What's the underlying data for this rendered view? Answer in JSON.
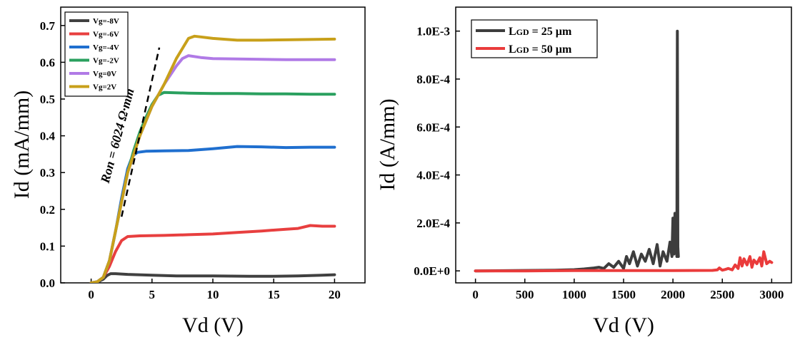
{
  "chart_data": [
    {
      "type": "line",
      "xlabel": "Vd (V)",
      "ylabel": "Id (mA/mm)",
      "xlim": [
        -2.5,
        22.5
      ],
      "ylim": [
        0,
        0.75
      ],
      "x_ticks": [
        "0",
        "5",
        "10",
        "15",
        "20"
      ],
      "x_tick_values": [
        0,
        5,
        10,
        15,
        20
      ],
      "y_ticks": [
        "0.0",
        "0.1",
        "0.2",
        "0.3",
        "0.4",
        "0.5",
        "0.6",
        "0.7"
      ],
      "y_tick_values": [
        0,
        0.1,
        0.2,
        0.3,
        0.4,
        0.5,
        0.6,
        0.7
      ],
      "legend_position": "top-left",
      "series": [
        {
          "name": "Vg=-8V",
          "color": "#404040",
          "x": [
            0,
            0.5,
            1,
            1.3,
            1.6,
            2,
            3,
            5,
            7,
            10,
            13,
            15,
            17,
            18,
            19,
            20
          ],
          "values": [
            0,
            0.002,
            0.01,
            0.02,
            0.025,
            0.025,
            0.023,
            0.021,
            0.019,
            0.019,
            0.018,
            0.018,
            0.019,
            0.02,
            0.021,
            0.022
          ]
        },
        {
          "name": "Vg=-6V",
          "color": "#e83f3f",
          "x": [
            0,
            0.5,
            1,
            1.5,
            2,
            2.5,
            3,
            4,
            6,
            8,
            10,
            12,
            14,
            16,
            17,
            18,
            19,
            20
          ],
          "values": [
            0,
            0.003,
            0.015,
            0.045,
            0.085,
            0.115,
            0.126,
            0.128,
            0.129,
            0.131,
            0.133,
            0.137,
            0.141,
            0.146,
            0.148,
            0.156,
            0.154,
            0.154
          ]
        },
        {
          "name": "Vg=-4V",
          "color": "#1f6fcf",
          "x": [
            0,
            0.5,
            1,
            1.5,
            2,
            2.5,
            3,
            3.4,
            3.8,
            4.5,
            6,
            8,
            10,
            12,
            14,
            16,
            18,
            20
          ],
          "values": [
            0,
            0.003,
            0.015,
            0.06,
            0.14,
            0.23,
            0.31,
            0.345,
            0.355,
            0.358,
            0.359,
            0.36,
            0.365,
            0.371,
            0.37,
            0.368,
            0.369,
            0.369
          ]
        },
        {
          "name": "Vg=-2V",
          "color": "#2aa05f",
          "x": [
            0,
            0.5,
            1,
            1.5,
            2,
            2.5,
            3,
            3.5,
            4,
            4.5,
            5,
            5.5,
            6,
            8,
            10,
            12,
            14,
            16,
            18,
            20
          ],
          "values": [
            0,
            0.003,
            0.015,
            0.06,
            0.14,
            0.22,
            0.3,
            0.36,
            0.41,
            0.45,
            0.485,
            0.51,
            0.518,
            0.516,
            0.515,
            0.515,
            0.514,
            0.514,
            0.513,
            0.513
          ]
        },
        {
          "name": "Vg=0V",
          "color": "#b07ae6",
          "x": [
            0,
            0.5,
            1,
            1.5,
            2,
            2.5,
            3,
            4,
            5,
            6,
            7,
            7.5,
            8,
            9,
            10,
            12,
            14,
            16,
            18,
            20
          ],
          "values": [
            0,
            0.003,
            0.015,
            0.06,
            0.14,
            0.22,
            0.3,
            0.4,
            0.48,
            0.54,
            0.59,
            0.61,
            0.618,
            0.613,
            0.61,
            0.609,
            0.608,
            0.607,
            0.607,
            0.607
          ]
        },
        {
          "name": "Vg=2V",
          "color": "#c8a01a",
          "x": [
            0,
            0.5,
            1,
            1.5,
            2,
            2.5,
            3,
            4,
            5,
            6,
            7,
            8,
            8.5,
            9,
            10,
            12,
            14,
            16,
            18,
            20
          ],
          "values": [
            0,
            0.003,
            0.015,
            0.06,
            0.14,
            0.22,
            0.3,
            0.4,
            0.48,
            0.54,
            0.61,
            0.665,
            0.671,
            0.669,
            0.665,
            0.66,
            0.66,
            0.661,
            0.662,
            0.663
          ]
        }
      ],
      "annotations": [
        {
          "text": "Ron = 6024 Ω·mm",
          "line_x": [
            2.5,
            5.6
          ],
          "line_y": [
            0.18,
            0.64
          ]
        }
      ]
    },
    {
      "type": "line",
      "xlabel": "Vd (V)",
      "ylabel": "Id (A/mm)",
      "xlim": [
        -200,
        3200
      ],
      "ylim": [
        -5e-05,
        0.0011
      ],
      "x_ticks": [
        "0",
        "500",
        "1000",
        "1500",
        "2000",
        "2500",
        "3000"
      ],
      "x_tick_values": [
        0,
        500,
        1000,
        1500,
        2000,
        2500,
        3000
      ],
      "y_ticks": [
        "0.0E+0",
        "2.0E-4",
        "4.0E-4",
        "6.0E-4",
        "8.0E-4",
        "1.0E-3"
      ],
      "y_tick_values": [
        0,
        0.0002,
        0.0004,
        0.0006,
        0.0008,
        0.001
      ],
      "legend_position": "top-left",
      "series": [
        {
          "name_main": "L",
          "name_sub": "GD",
          "name_rest": " = 25 µm",
          "color": "#3d3d3d",
          "x": [
            0,
            400,
            800,
            1000,
            1100,
            1200,
            1250,
            1300,
            1350,
            1400,
            1450,
            1500,
            1530,
            1560,
            1600,
            1640,
            1680,
            1720,
            1760,
            1800,
            1840,
            1870,
            1900,
            1940,
            1970,
            1990,
            2000,
            2010,
            2020,
            2025,
            2030,
            2035,
            2040,
            2045,
            2050,
            2055
          ],
          "values": [
            0,
            1e-06,
            3e-06,
            5e-06,
            8e-06,
            1.2e-05,
            1.5e-05,
            1e-05,
            3e-05,
            1.5e-05,
            4e-05,
            1e-05,
            6e-05,
            3e-05,
            8e-05,
            2e-05,
            7e-05,
            4e-05,
            9e-05,
            3e-05,
            0.00011,
            2e-05,
            8e-05,
            4e-05,
            0.00012,
            6e-05,
            0.00022,
            7e-05,
            0.00024,
            8e-05,
            0.0002,
            0.00012,
            6e-05,
            0.001,
            0.0001,
            6e-05
          ]
        },
        {
          "name_main": "L",
          "name_sub": "GD",
          "name_rest": " = 50 µm",
          "color": "#ea3b3b",
          "x": [
            0,
            500,
            1000,
            1500,
            2000,
            2400,
            2450,
            2470,
            2500,
            2530,
            2560,
            2600,
            2630,
            2660,
            2680,
            2700,
            2720,
            2750,
            2780,
            2800,
            2820,
            2850,
            2880,
            2900,
            2920,
            2950,
            2980,
            3000
          ],
          "values": [
            0,
            0,
            1e-06,
            1e-06,
            1e-06,
            2e-06,
            4e-06,
            1.2e-05,
            3e-06,
            6e-06,
            1e-05,
            4e-06,
            2.5e-05,
            1e-05,
            5.5e-05,
            2e-05,
            5e-05,
            2.5e-05,
            6e-05,
            1.5e-05,
            4.5e-05,
            3e-05,
            5.5e-05,
            2e-05,
            8e-05,
            3e-05,
            4e-05,
            3.5e-05
          ]
        }
      ]
    }
  ]
}
